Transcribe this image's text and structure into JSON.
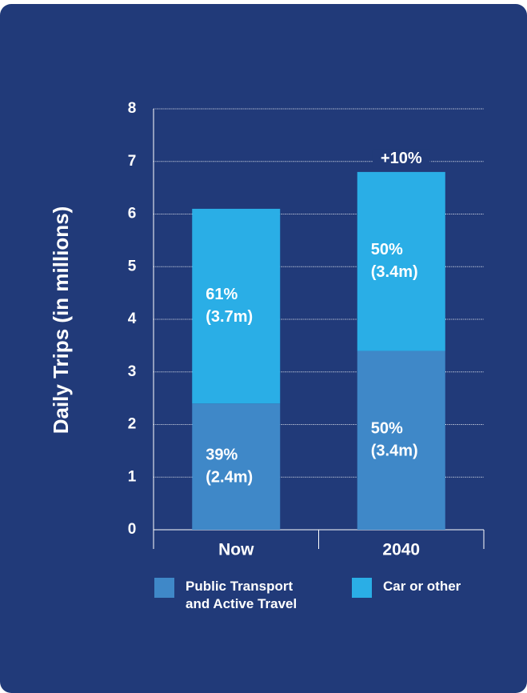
{
  "chart_data": {
    "type": "stacked-bar",
    "y_label": "Daily Trips (in millions)",
    "categories": [
      "Now",
      "2040"
    ],
    "series": [
      {
        "name": "Public Transport and Active Travel",
        "color": "#3f88c8",
        "values": [
          2.4,
          3.4
        ],
        "value_labels": [
          [
            "39%",
            "(2.4m)"
          ],
          [
            "50%",
            "(3.4m)"
          ]
        ]
      },
      {
        "name": "Car or other",
        "color": "#2aaee6",
        "values": [
          3.7,
          3.4
        ],
        "value_labels": [
          [
            "61%",
            "(3.7m)"
          ],
          [
            "50%",
            "(3.4m)"
          ]
        ]
      }
    ],
    "annotations": [
      {
        "category": 1,
        "text": "+10%"
      }
    ],
    "ylim": [
      0,
      8
    ],
    "yticks": [
      0,
      1,
      2,
      3,
      4,
      5,
      6,
      7,
      8
    ],
    "grid": true,
    "legend": "bottom"
  }
}
